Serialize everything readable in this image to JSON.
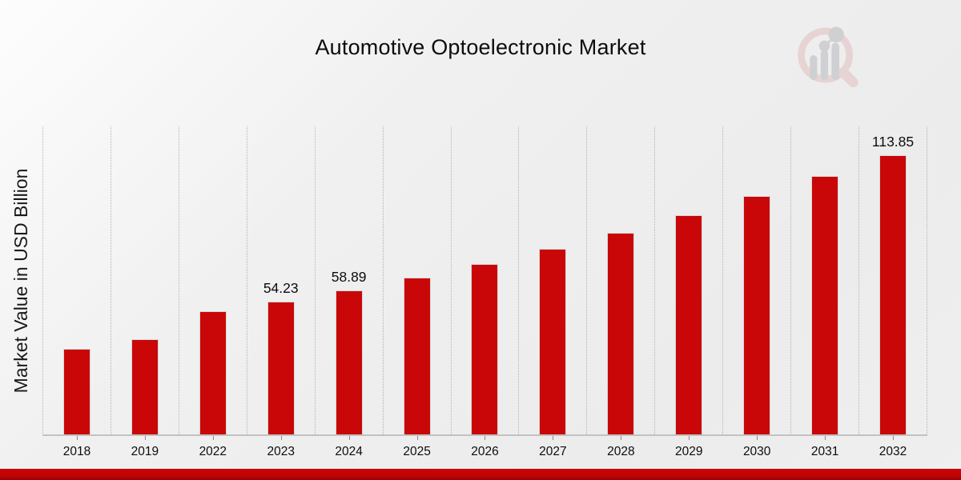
{
  "header": {
    "title": "Automotive Optoelectronic Market"
  },
  "logo": {
    "name": "magnifier-bar-chart-logo",
    "ring_color": "#e6cbcb",
    "bar_color": "#c6c7cb"
  },
  "chart_data": {
    "type": "bar",
    "title": "Automotive Optoelectronic Market",
    "xlabel": "",
    "ylabel": "Market Value in USD Billion",
    "categories": [
      "2018",
      "2019",
      "2022",
      "2023",
      "2024",
      "2025",
      "2026",
      "2027",
      "2028",
      "2029",
      "2030",
      "2031",
      "2032"
    ],
    "values": [
      34.9,
      38.8,
      50.2,
      54.23,
      58.89,
      63.9,
      69.5,
      75.7,
      82.2,
      89.4,
      97.2,
      105.4,
      113.85
    ],
    "data_labels": [
      null,
      null,
      null,
      "54.23",
      "58.89",
      null,
      null,
      null,
      null,
      null,
      null,
      null,
      "113.85"
    ],
    "ylim": [
      0,
      126.3
    ],
    "bar_color": "#c90708",
    "grid": "vertical dotted category separators",
    "legend": "none"
  },
  "footer": {
    "accent_band_color": "#c00304"
  }
}
